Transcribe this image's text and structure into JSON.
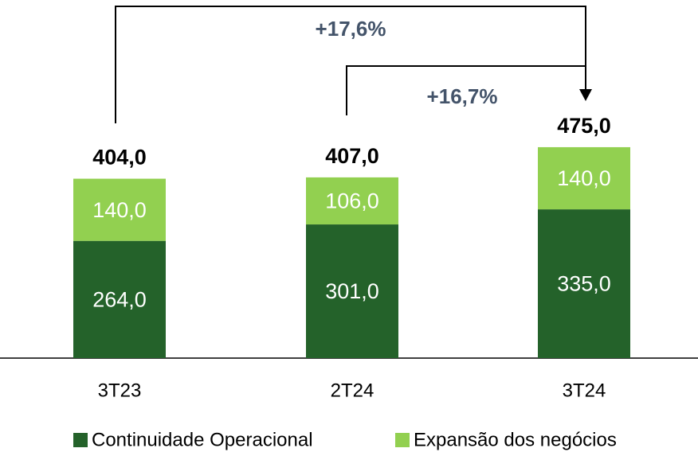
{
  "chart_data": {
    "type": "stacked_bar",
    "categories": [
      "3T23",
      "2T24",
      "3T24"
    ],
    "series": [
      {
        "name": "Continuidade Operacional",
        "color": "#24622a",
        "values": [
          264,
          301,
          335
        ],
        "value_labels": [
          "264,0",
          "301,0",
          "335,0"
        ]
      },
      {
        "name": "Expansão dos negócios",
        "color": "#92d050",
        "values": [
          140,
          106,
          140
        ],
        "value_labels": [
          "140,0",
          "106,0",
          "140,0"
        ]
      }
    ],
    "totals": [
      404,
      407,
      475
    ],
    "total_labels": [
      "404,0",
      "407,0",
      "475,0"
    ],
    "annotations": [
      "+17,6%",
      "+16,7%"
    ],
    "ylim": [
      0,
      500
    ]
  }
}
